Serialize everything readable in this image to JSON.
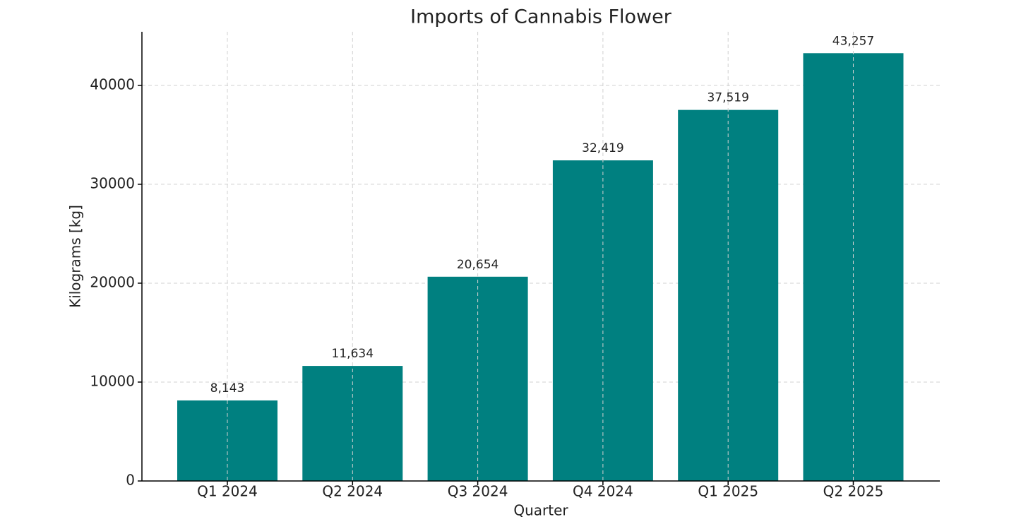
{
  "chart_data": {
    "type": "bar",
    "title": "Imports of Cannabis Flower",
    "x_label": "Quarter",
    "y_label": "Kilograms [kg]",
    "categories": [
      "Q1 2024",
      "Q2 2024",
      "Q3 2024",
      "Q4 2024",
      "Q1 2025",
      "Q2 2025"
    ],
    "values": [
      8143,
      11634,
      20654,
      32419,
      37519,
      43257
    ],
    "value_labels": [
      "8,143",
      "11,634",
      "20,654",
      "32,419",
      "37,519",
      "43,257"
    ],
    "color": "#008080",
    "ylim": [
      0,
      45420
    ],
    "yticks": [
      0,
      10000,
      20000,
      30000,
      40000
    ],
    "grid": true
  }
}
